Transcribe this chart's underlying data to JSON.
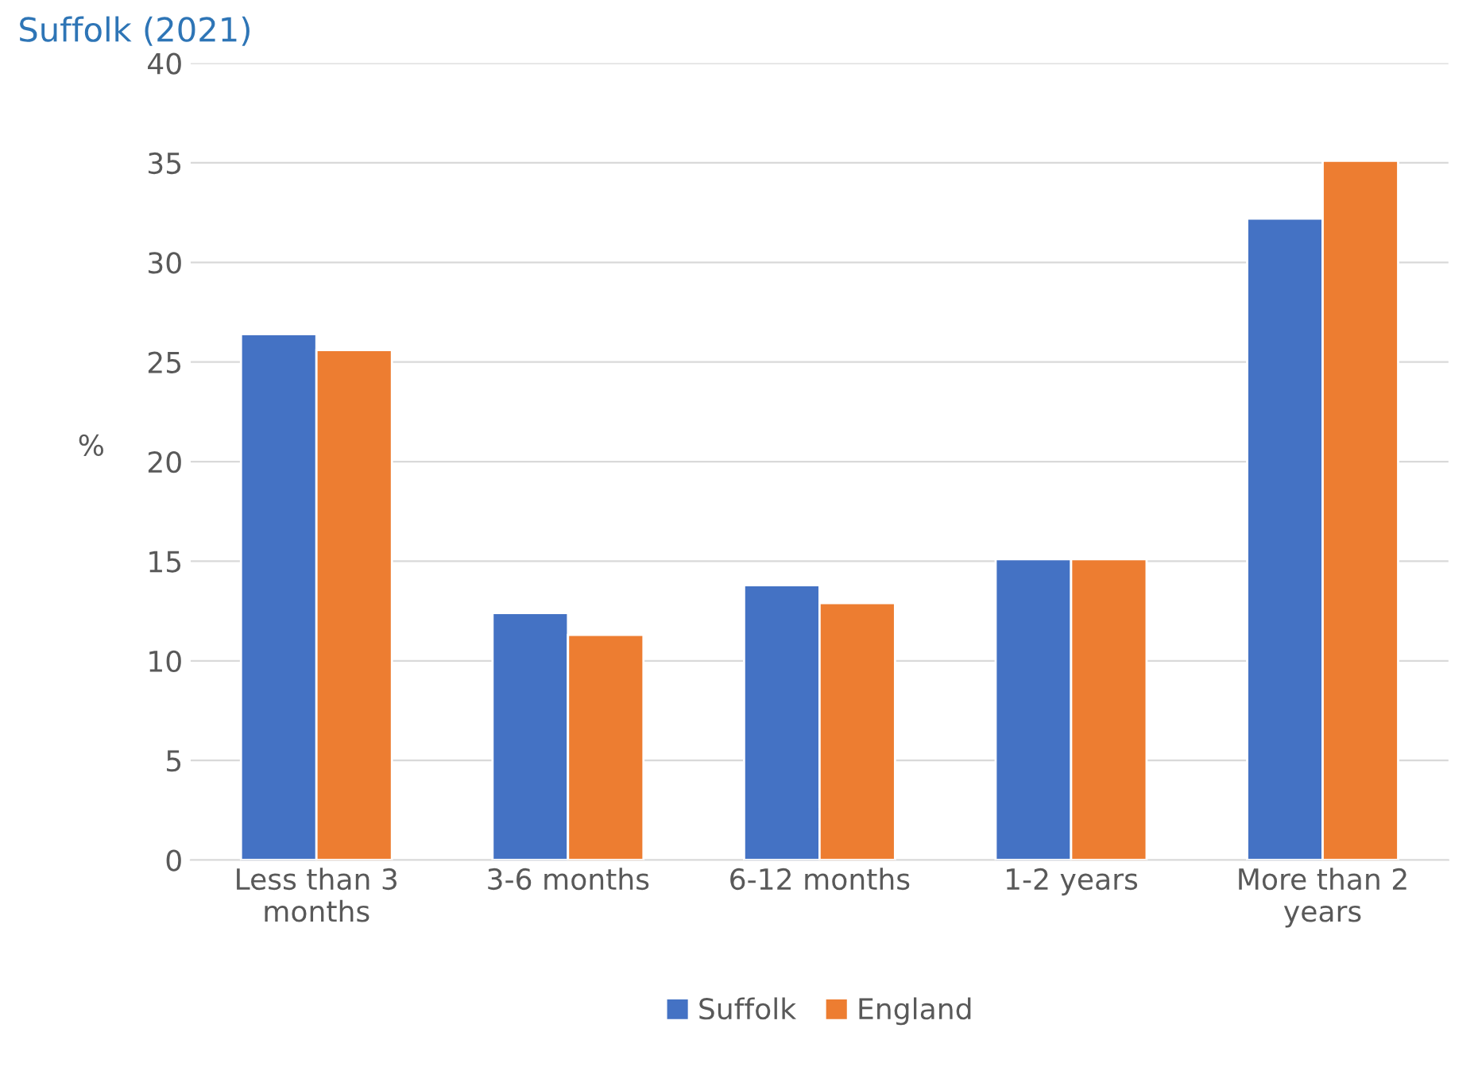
{
  "chart_data": {
    "type": "bar",
    "title": "Suffolk (2021)",
    "ylabel": "%",
    "categories": [
      "Less than 3\nmonths",
      "3-6 months",
      "6-12 months",
      "1-2 years",
      "More than 2\nyears"
    ],
    "series": [
      {
        "name": "Suffolk",
        "color": "#4472c4",
        "values": [
          26.4,
          12.4,
          13.8,
          15.1,
          32.2
        ]
      },
      {
        "name": "England",
        "color": "#ed7d31",
        "values": [
          25.6,
          11.3,
          12.9,
          15.1,
          35.1
        ]
      }
    ],
    "ylim": [
      0,
      40
    ],
    "yticks": [
      0,
      5,
      10,
      15,
      20,
      25,
      30,
      35,
      40
    ],
    "grid": "y",
    "legend": "bottom"
  }
}
